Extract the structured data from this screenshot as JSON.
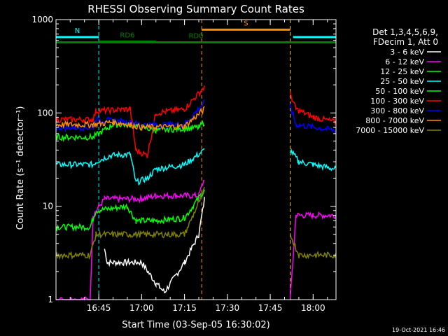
{
  "chart_data": {
    "type": "line",
    "title": "RHESSI Observing Summary Count Rates",
    "xlabel": "Start Time (03-Sep-05 16:30:02)",
    "ylabel": "Count Rate (s⁻¹ detector⁻¹)",
    "y_scale": "log",
    "ylim": [
      1,
      1000
    ],
    "y_ticks": [
      {
        "value": 1,
        "label": "1"
      },
      {
        "value": 10,
        "label": "10"
      },
      {
        "value": 100,
        "label": "100"
      },
      {
        "value": 1000,
        "label": "1000"
      }
    ],
    "xlim": [
      "16:30:02",
      "18:08:00"
    ],
    "x_ticks": [
      {
        "time": "16:45",
        "label": "16:45"
      },
      {
        "time": "17:00",
        "label": "17:00"
      },
      {
        "time": "17:15",
        "label": "17:15"
      },
      {
        "time": "17:30",
        "label": "17:30"
      },
      {
        "time": "17:45",
        "label": "17:45"
      },
      {
        "time": "18:00",
        "label": "18:00"
      }
    ],
    "legend_header": [
      "Det 1,3,4,5,6,9,",
      "FDecim 1, Att 0"
    ],
    "legend_position": "right",
    "series": [
      {
        "name": "3 - 6 keV",
        "color": "#ffffff",
        "points": [
          [
            "16:47",
            3.5
          ],
          [
            "16:48",
            2.5
          ],
          [
            "17:00",
            2.5
          ],
          [
            "17:05",
            1.5
          ],
          [
            "17:08",
            1.2
          ],
          [
            "17:15",
            2.5
          ],
          [
            "17:20",
            5
          ],
          [
            "17:22",
            12
          ]
        ]
      },
      {
        "name": "6 - 12 keV",
        "color": "#ff00ff",
        "points": [
          [
            "16:30",
            1
          ],
          [
            "16:42",
            1
          ],
          [
            "16:43",
            8
          ],
          [
            "16:47",
            12
          ],
          [
            "17:00",
            12
          ],
          [
            "17:05",
            13
          ],
          [
            "17:20",
            13
          ],
          [
            "17:22",
            20
          ],
          [
            "17:52",
            1
          ],
          [
            "17:54",
            8
          ],
          [
            "18:00",
            8
          ],
          [
            "18:08",
            8
          ]
        ]
      },
      {
        "name": "12 - 25 keV",
        "color": "#00ff00",
        "points": [
          [
            "16:30",
            6
          ],
          [
            "16:42",
            6
          ],
          [
            "16:44",
            9
          ],
          [
            "16:55",
            10
          ],
          [
            "16:58",
            7
          ],
          [
            "17:05",
            7
          ],
          [
            "17:15",
            7.5
          ],
          [
            "17:22",
            15
          ]
        ]
      },
      {
        "name": "25 - 50 keV",
        "color": "#00ffff",
        "points": [
          [
            "16:30",
            28
          ],
          [
            "16:43",
            28
          ],
          [
            "16:44",
            30
          ],
          [
            "16:49",
            35
          ],
          [
            "16:56",
            36
          ],
          [
            "16:58",
            18
          ],
          [
            "17:02",
            20
          ],
          [
            "17:05",
            25
          ],
          [
            "17:15",
            28
          ],
          [
            "17:22",
            40
          ],
          [
            "17:52",
            40
          ],
          [
            "17:55",
            30
          ],
          [
            "18:00",
            28
          ],
          [
            "18:08",
            25
          ]
        ]
      },
      {
        "name": "50 - 100 keV",
        "color": "#00ff00",
        "points": [
          [
            "16:30",
            55
          ],
          [
            "16:43",
            55
          ],
          [
            "16:50",
            75
          ],
          [
            "16:56",
            75
          ],
          [
            "17:05",
            65
          ],
          [
            "17:20",
            70
          ],
          [
            "17:22",
            80
          ]
        ]
      },
      {
        "name": "100 - 300 keV",
        "color": "#ff0000",
        "points": [
          [
            "16:30",
            85
          ],
          [
            "16:43",
            85
          ],
          [
            "16:44",
            105
          ],
          [
            "16:56",
            110
          ],
          [
            "16:58",
            40
          ],
          [
            "17:02",
            35
          ],
          [
            "17:05",
            100
          ],
          [
            "17:15",
            110
          ],
          [
            "17:22",
            190
          ],
          [
            "17:52",
            160
          ],
          [
            "17:54",
            110
          ],
          [
            "18:00",
            90
          ],
          [
            "18:08",
            80
          ]
        ]
      },
      {
        "name": "300 - 800 keV",
        "color": "#0000ff",
        "points": [
          [
            "16:30",
            70
          ],
          [
            "16:43",
            70
          ],
          [
            "16:44",
            85
          ],
          [
            "16:56",
            80
          ],
          [
            "17:00",
            75
          ],
          [
            "17:15",
            75
          ],
          [
            "17:22",
            130
          ],
          [
            "17:52",
            120
          ],
          [
            "17:54",
            75
          ],
          [
            "18:08",
            65
          ]
        ]
      },
      {
        "name": "800 - 7000 keV",
        "color": "#ff8c00",
        "points": [
          [
            "16:30",
            75
          ],
          [
            "16:43",
            75
          ],
          [
            "16:50",
            80
          ],
          [
            "16:56",
            75
          ],
          [
            "17:00",
            70
          ],
          [
            "17:15",
            72
          ],
          [
            "17:22",
            110
          ]
        ]
      },
      {
        "name": "7000 - 15000 keV",
        "color": "#808000",
        "points": [
          [
            "16:30",
            3
          ],
          [
            "16:42",
            3
          ],
          [
            "16:44",
            5
          ],
          [
            "16:56",
            5
          ],
          [
            "17:15",
            5
          ],
          [
            "17:22",
            15
          ],
          [
            "17:52",
            5
          ],
          [
            "17:55",
            3
          ],
          [
            "18:08",
            3
          ]
        ]
      }
    ],
    "annotations": [
      {
        "label": "N",
        "color": "#00ffff",
        "segments": [
          [
            "16:30:02",
            "16:45"
          ],
          [
            "17:53",
            "18:08"
          ]
        ],
        "level": 650
      },
      {
        "label": "S",
        "color": "#ff8c00",
        "segments": [
          [
            "17:21",
            "17:52"
          ]
        ],
        "level": 780
      },
      {
        "label": "RD6",
        "color": "#008000",
        "segments": [
          [
            "16:45",
            "17:05"
          ]
        ],
        "level": 580
      },
      {
        "label": "RD0",
        "color": "#008000",
        "segments": [
          [
            "16:30:02",
            "18:08"
          ]
        ],
        "level": 570
      }
    ],
    "vertical_markers": [
      {
        "time": "16:30:02",
        "color": "#00ffff"
      },
      {
        "time": "16:45",
        "color": "#00ffff"
      },
      {
        "time": "17:52",
        "color": "#00ffff"
      },
      {
        "time": "18:08",
        "color": "#00ffff"
      },
      {
        "time": "17:21",
        "color": "#ff8c00"
      },
      {
        "time": "17:52",
        "color": "#ff8c00"
      }
    ],
    "footer_date": "19-Oct-2021 16:46"
  }
}
